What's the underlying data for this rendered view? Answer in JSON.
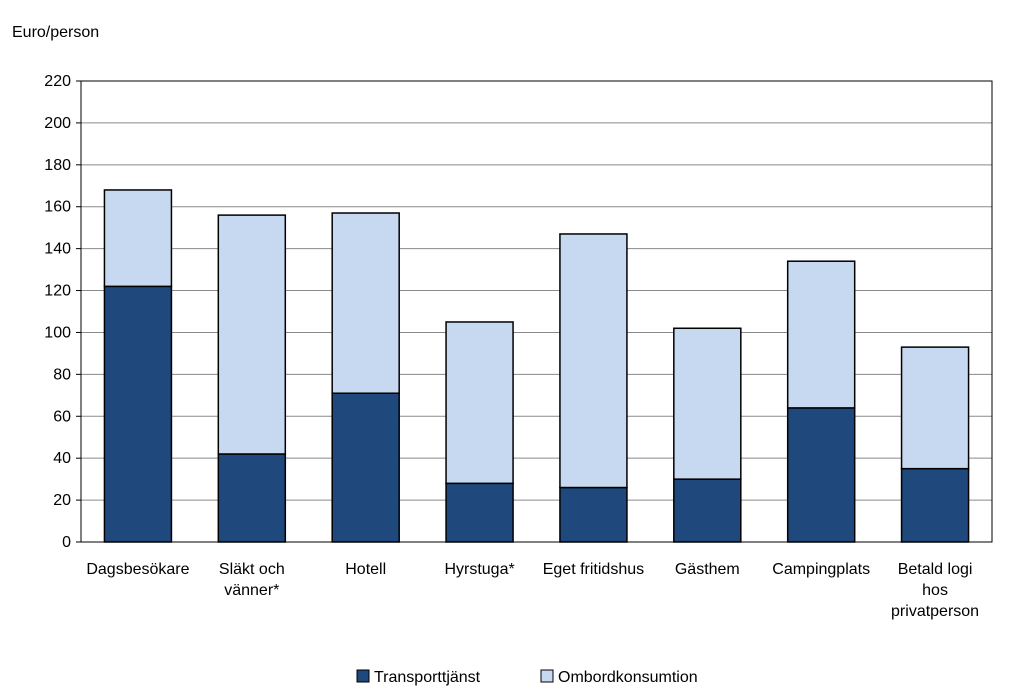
{
  "chart_data": {
    "type": "bar",
    "stacked": true,
    "ylabel": "Euro/person",
    "ylim": [
      0,
      220
    ],
    "yticks": [
      0,
      20,
      40,
      60,
      80,
      100,
      120,
      140,
      160,
      180,
      200,
      220
    ],
    "grid": true,
    "legend_position": "bottom",
    "categories": [
      [
        "Dagsbesökare"
      ],
      [
        "Släkt och",
        "vänner*"
      ],
      [
        "Hotell"
      ],
      [
        "Hyrstuga*"
      ],
      [
        "Eget fritidshus"
      ],
      [
        "Gästhem"
      ],
      [
        "Campingplats"
      ],
      [
        "Betald logi",
        "hos",
        "privatperson"
      ]
    ],
    "series": [
      {
        "name": "Transporttjänst",
        "color": "#1f497d",
        "values": [
          122,
          42,
          71,
          28,
          26,
          30,
          64,
          35
        ]
      },
      {
        "name": "Ombordkonsumtion",
        "color": "#c6d9f1",
        "values": [
          46,
          114,
          86,
          77,
          121,
          72,
          70,
          58
        ]
      }
    ]
  }
}
